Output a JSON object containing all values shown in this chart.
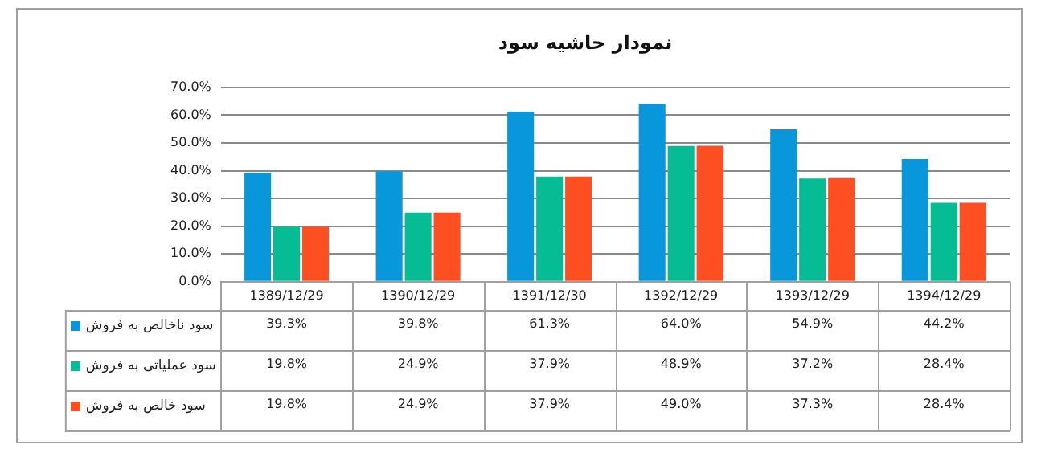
{
  "chart_data": {
    "type": "bar",
    "title": "نمودار حاشیه سود",
    "categories": [
      "1389/12/29",
      "1390/12/29",
      "1391/12/30",
      "1392/12/29",
      "1393/12/29",
      "1394/12/29"
    ],
    "series": [
      {
        "name": "سود ناخالص به فروش",
        "color": "#0797da",
        "values": [
          39.3,
          39.8,
          61.3,
          64.0,
          54.9,
          44.2
        ],
        "value_labels": [
          "39.3%",
          "39.8%",
          "61.3%",
          "64.0%",
          "54.9%",
          "44.2%"
        ]
      },
      {
        "name": "سود عملیاتی به فروش",
        "color": "#06bc94",
        "values": [
          19.8,
          24.9,
          37.9,
          48.9,
          37.2,
          28.4
        ],
        "value_labels": [
          "19.8%",
          "24.9%",
          "37.9%",
          "48.9%",
          "37.2%",
          "28.4%"
        ]
      },
      {
        "name": "سود خالص به فروش",
        "color": "#fd4f22",
        "values": [
          19.8,
          24.9,
          37.9,
          49.0,
          37.3,
          28.4
        ],
        "value_labels": [
          "19.8%",
          "24.9%",
          "37.9%",
          "49.0%",
          "37.3%",
          "28.4%"
        ]
      }
    ],
    "ylim": [
      0,
      70
    ],
    "yticks": [
      {
        "value": 0,
        "label": "0.0%"
      },
      {
        "value": 10,
        "label": "10.0%"
      },
      {
        "value": 20,
        "label": "20.0%"
      },
      {
        "value": 30,
        "label": "30.0%"
      },
      {
        "value": 40,
        "label": "40.0%"
      },
      {
        "value": 50,
        "label": "50.0%"
      },
      {
        "value": 60,
        "label": "60.0%"
      },
      {
        "value": 70,
        "label": "70.0%"
      }
    ],
    "grid": "y",
    "legend": "bottom left"
  }
}
